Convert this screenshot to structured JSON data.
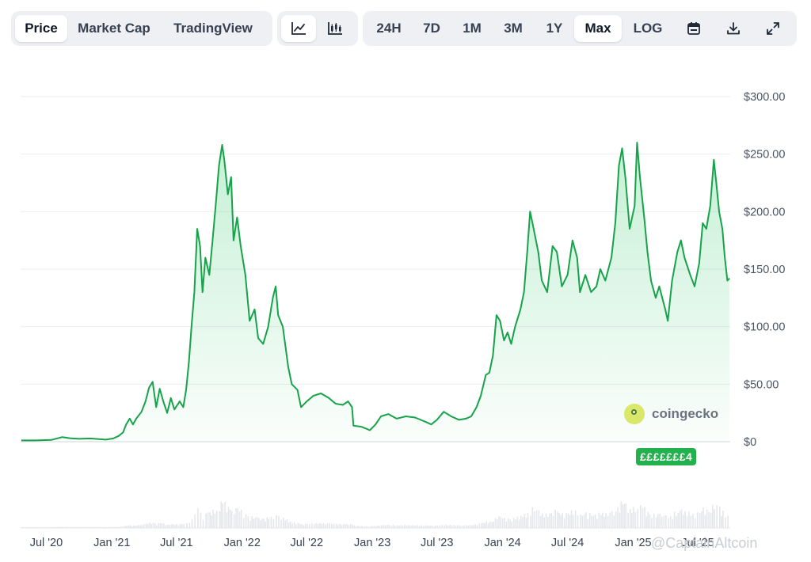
{
  "toolbar": {
    "type_tabs": [
      {
        "label": "Price",
        "active": true
      },
      {
        "label": "Market Cap",
        "active": false
      },
      {
        "label": "TradingView",
        "active": false
      }
    ],
    "view_buttons": [
      {
        "icon": "line-chart-icon",
        "active": true
      },
      {
        "icon": "candlestick-chart-icon",
        "active": false
      }
    ],
    "ranges": [
      {
        "label": "24H",
        "active": false
      },
      {
        "label": "7D",
        "active": false
      },
      {
        "label": "1M",
        "active": false
      },
      {
        "label": "3M",
        "active": false
      },
      {
        "label": "1Y",
        "active": false
      },
      {
        "label": "Max",
        "active": true
      },
      {
        "label": "LOG",
        "active": false
      }
    ],
    "tools": [
      {
        "icon": "calendar-icon"
      },
      {
        "icon": "download-icon"
      },
      {
        "icon": "fullscreen-icon"
      }
    ]
  },
  "watermark": {
    "text": "coingecko"
  },
  "price_tag": {
    "text": "£££££££4"
  },
  "credit": {
    "text": "@CaptainAltcoin"
  },
  "colors": {
    "line": "#16a34a",
    "fill": "#22c55e",
    "grid": "#eceef1",
    "volume": "#e5e7eb",
    "price_tag": "#22b14c"
  },
  "chart_data": {
    "type": "area",
    "title": "",
    "xlabel": "",
    "ylabel": "",
    "y_ticks": [
      "$0",
      "$50.00",
      "$100.00",
      "$150.00",
      "$200.00",
      "$250.00",
      "$300.00"
    ],
    "y_tick_values": [
      0,
      50,
      100,
      150,
      200,
      250,
      300
    ],
    "ylim": [
      0,
      300
    ],
    "x_ticks": [
      "Jul '20",
      "Jan '21",
      "Jul '21",
      "Jan '22",
      "Jul '22",
      "Jan '23",
      "Jul '23",
      "Jan '24",
      "Jul '24",
      "Jan '25",
      "Jul '25"
    ],
    "x_tick_dates": [
      "2020-07-01",
      "2021-01-01",
      "2021-07-01",
      "2022-01-01",
      "2022-07-01",
      "2023-01-01",
      "2023-07-01",
      "2024-01-01",
      "2024-07-01",
      "2025-01-01",
      "2025-07-01"
    ],
    "xlim": [
      "2020-04-20",
      "2025-09-30"
    ],
    "grid": true,
    "legend": "none",
    "series": [
      {
        "values_note_x": "dates",
        "points": [
          [
            "2020-04-22",
            1.1
          ],
          [
            "2020-06-01",
            1.1
          ],
          [
            "2020-07-15",
            1.5
          ],
          [
            "2020-08-15",
            4.0
          ],
          [
            "2020-09-05",
            3.0
          ],
          [
            "2020-10-01",
            2.5
          ],
          [
            "2020-11-01",
            2.8
          ],
          [
            "2020-12-15",
            1.8
          ],
          [
            "2021-01-05",
            2.8
          ],
          [
            "2021-01-20",
            5.0
          ],
          [
            "2021-02-01",
            8.0
          ],
          [
            "2021-02-10",
            15.0
          ],
          [
            "2021-02-20",
            20.0
          ],
          [
            "2021-03-01",
            15.0
          ],
          [
            "2021-03-10",
            20.0
          ],
          [
            "2021-03-25",
            26.0
          ],
          [
            "2021-04-05",
            35.0
          ],
          [
            "2021-04-15",
            47.0
          ],
          [
            "2021-04-25",
            52.0
          ],
          [
            "2021-05-05",
            30.0
          ],
          [
            "2021-05-15",
            46.0
          ],
          [
            "2021-05-25",
            35.0
          ],
          [
            "2021-06-05",
            25.0
          ],
          [
            "2021-06-15",
            38.0
          ],
          [
            "2021-06-25",
            28.0
          ],
          [
            "2021-07-10",
            35.0
          ],
          [
            "2021-07-20",
            30.0
          ],
          [
            "2021-07-28",
            45.0
          ],
          [
            "2021-08-05",
            70.0
          ],
          [
            "2021-08-12",
            100.0
          ],
          [
            "2021-08-20",
            130.0
          ],
          [
            "2021-08-28",
            185.0
          ],
          [
            "2021-09-05",
            170.0
          ],
          [
            "2021-09-12",
            130.0
          ],
          [
            "2021-09-20",
            160.0
          ],
          [
            "2021-10-01",
            145.0
          ],
          [
            "2021-10-10",
            175.0
          ],
          [
            "2021-10-20",
            210.0
          ],
          [
            "2021-10-28",
            240.0
          ],
          [
            "2021-11-06",
            258.0
          ],
          [
            "2021-11-12",
            245.0
          ],
          [
            "2021-11-22",
            215.0
          ],
          [
            "2021-12-01",
            230.0
          ],
          [
            "2021-12-08",
            175.0
          ],
          [
            "2021-12-18",
            195.0
          ],
          [
            "2021-12-28",
            170.0
          ],
          [
            "2022-01-10",
            145.0
          ],
          [
            "2022-01-22",
            105.0
          ],
          [
            "2022-02-05",
            115.0
          ],
          [
            "2022-02-15",
            90.0
          ],
          [
            "2022-03-01",
            85.0
          ],
          [
            "2022-03-15",
            100.0
          ],
          [
            "2022-03-28",
            125.0
          ],
          [
            "2022-04-05",
            135.0
          ],
          [
            "2022-04-12",
            110.0
          ],
          [
            "2022-04-25",
            100.0
          ],
          [
            "2022-05-10",
            65.0
          ],
          [
            "2022-05-20",
            50.0
          ],
          [
            "2022-06-05",
            45.0
          ],
          [
            "2022-06-15",
            30.0
          ],
          [
            "2022-07-01",
            35.0
          ],
          [
            "2022-07-20",
            40.0
          ],
          [
            "2022-08-10",
            42.0
          ],
          [
            "2022-09-01",
            38.0
          ],
          [
            "2022-09-20",
            33.0
          ],
          [
            "2022-10-10",
            32.0
          ],
          [
            "2022-10-25",
            35.0
          ],
          [
            "2022-11-05",
            30.0
          ],
          [
            "2022-11-09",
            14.0
          ],
          [
            "2022-12-01",
            13.0
          ],
          [
            "2022-12-25",
            10.0
          ],
          [
            "2023-01-10",
            15.0
          ],
          [
            "2023-01-25",
            22.0
          ],
          [
            "2023-02-15",
            24.0
          ],
          [
            "2023-03-10",
            20.0
          ],
          [
            "2023-04-05",
            22.0
          ],
          [
            "2023-05-01",
            21.0
          ],
          [
            "2023-06-01",
            17.0
          ],
          [
            "2023-06-15",
            15.0
          ],
          [
            "2023-07-01",
            19.0
          ],
          [
            "2023-07-20",
            26.0
          ],
          [
            "2023-08-10",
            22.0
          ],
          [
            "2023-09-01",
            19.0
          ],
          [
            "2023-09-20",
            20.0
          ],
          [
            "2023-10-05",
            22.0
          ],
          [
            "2023-10-20",
            30.0
          ],
          [
            "2023-11-01",
            40.0
          ],
          [
            "2023-11-15",
            58.0
          ],
          [
            "2023-11-25",
            60.0
          ],
          [
            "2023-12-05",
            75.0
          ],
          [
            "2023-12-15",
            110.0
          ],
          [
            "2023-12-25",
            105.0
          ],
          [
            "2024-01-05",
            88.0
          ],
          [
            "2024-01-15",
            95.0
          ],
          [
            "2024-01-25",
            85.0
          ],
          [
            "2024-02-05",
            100.0
          ],
          [
            "2024-02-20",
            115.0
          ],
          [
            "2024-03-01",
            130.0
          ],
          [
            "2024-03-10",
            165.0
          ],
          [
            "2024-03-18",
            200.0
          ],
          [
            "2024-03-28",
            185.0
          ],
          [
            "2024-04-10",
            165.0
          ],
          [
            "2024-04-20",
            140.0
          ],
          [
            "2024-05-05",
            130.0
          ],
          [
            "2024-05-20",
            170.0
          ],
          [
            "2024-06-01",
            165.0
          ],
          [
            "2024-06-15",
            135.0
          ],
          [
            "2024-07-01",
            145.0
          ],
          [
            "2024-07-15",
            175.0
          ],
          [
            "2024-07-28",
            160.0
          ],
          [
            "2024-08-05",
            130.0
          ],
          [
            "2024-08-20",
            145.0
          ],
          [
            "2024-09-05",
            130.0
          ],
          [
            "2024-09-20",
            135.0
          ],
          [
            "2024-10-01",
            150.0
          ],
          [
            "2024-10-15",
            140.0
          ],
          [
            "2024-11-01",
            160.0
          ],
          [
            "2024-11-12",
            190.0
          ],
          [
            "2024-11-22",
            240.0
          ],
          [
            "2024-12-01",
            255.0
          ],
          [
            "2024-12-10",
            230.0
          ],
          [
            "2024-12-22",
            185.0
          ],
          [
            "2025-01-05",
            205.0
          ],
          [
            "2025-01-12",
            260.0
          ],
          [
            "2025-01-20",
            230.0
          ],
          [
            "2025-02-01",
            195.0
          ],
          [
            "2025-02-10",
            165.0
          ],
          [
            "2025-02-20",
            140.0
          ],
          [
            "2025-03-05",
            125.0
          ],
          [
            "2025-03-15",
            135.0
          ],
          [
            "2025-04-01",
            115.0
          ],
          [
            "2025-04-08",
            105.0
          ],
          [
            "2025-04-20",
            140.0
          ],
          [
            "2025-05-05",
            165.0
          ],
          [
            "2025-05-15",
            175.0
          ],
          [
            "2025-05-25",
            160.0
          ],
          [
            "2025-06-10",
            145.0
          ],
          [
            "2025-06-22",
            135.0
          ],
          [
            "2025-07-05",
            155.0
          ],
          [
            "2025-07-15",
            190.0
          ],
          [
            "2025-07-25",
            185.0
          ],
          [
            "2025-08-05",
            205.0
          ],
          [
            "2025-08-15",
            245.0
          ],
          [
            "2025-08-22",
            225.0
          ],
          [
            "2025-08-30",
            200.0
          ],
          [
            "2025-09-08",
            185.0
          ],
          [
            "2025-09-15",
            160.0
          ],
          [
            "2025-09-22",
            140.0
          ],
          [
            "2025-09-28",
            142.0
          ]
        ]
      }
    ],
    "volume_note": "volume bars shown below the price area, unlabeled"
  }
}
